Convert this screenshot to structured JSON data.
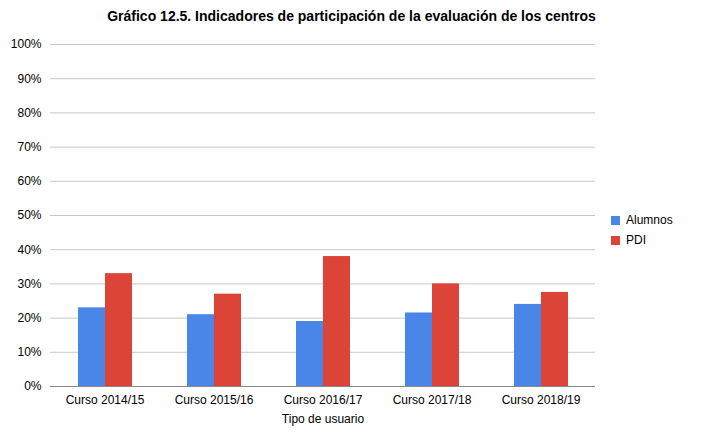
{
  "chart_data": {
    "type": "bar",
    "title": "Gráfico 12.5. Indicadores de participación de la evaluación de los centros",
    "x_label": "Tipo de usuario",
    "categories": [
      "Curso 2014/15",
      "Curso 2015/16",
      "Curso 2016/17",
      "Curso 2017/18",
      "Curso 2018/19"
    ],
    "series": [
      {
        "name": "Alumnos",
        "color": "#4a86e8",
        "values": [
          23,
          21,
          19,
          21.5,
          24
        ]
      },
      {
        "name": "PDI",
        "color": "#db4437",
        "values": [
          33,
          27,
          38,
          30,
          27.5
        ]
      }
    ],
    "ylim": [
      0,
      100
    ],
    "yticks": [
      {
        "value": 0,
        "label": "0%"
      },
      {
        "value": 10,
        "label": "10%"
      },
      {
        "value": 20,
        "label": "20%"
      },
      {
        "value": 30,
        "label": "30%"
      },
      {
        "value": 40,
        "label": "40%"
      },
      {
        "value": 50,
        "label": "50%"
      },
      {
        "value": 60,
        "label": "60%"
      },
      {
        "value": 70,
        "label": "70%"
      },
      {
        "value": 80,
        "label": "80%"
      },
      {
        "value": 90,
        "label": "90%"
      },
      {
        "value": 100,
        "label": "100%"
      }
    ],
    "grid": true,
    "legend": "right"
  }
}
